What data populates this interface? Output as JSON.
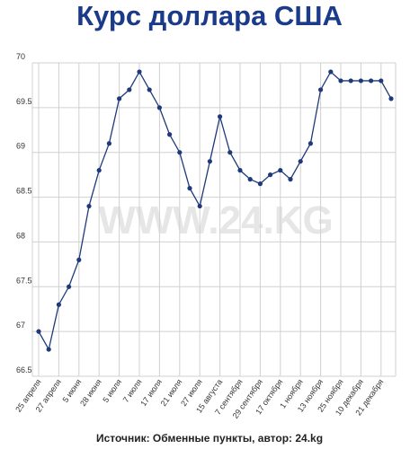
{
  "chart_data": {
    "type": "line",
    "title": "Курс доллара США",
    "watermark": "WWW.24.KG",
    "source": "Источник: Обменные пункты, автор: 24.kg",
    "categories": [
      "25 апреля",
      null,
      "27 апреля",
      null,
      "5 июня",
      null,
      "28 июня",
      null,
      "5 июля",
      null,
      "7 июля",
      null,
      "17 июля",
      null,
      "21 июля",
      null,
      "27 июля",
      null,
      "15 августа",
      null,
      "7 сентября",
      null,
      "29 сентября",
      null,
      "17 октября",
      null,
      "1 ноября",
      null,
      "13 ноября",
      null,
      "25 ноября",
      null,
      "10 декабря",
      null,
      "21 декабря",
      null
    ],
    "values": [
      67.0,
      66.8,
      67.3,
      67.5,
      67.8,
      68.4,
      68.8,
      69.1,
      69.6,
      69.7,
      69.9,
      69.7,
      69.5,
      69.2,
      69.0,
      68.6,
      68.4,
      68.9,
      69.4,
      69.0,
      68.8,
      68.7,
      68.65,
      68.75,
      68.8,
      68.7,
      68.9,
      69.1,
      69.7,
      69.9,
      69.8,
      69.8,
      69.8,
      69.8,
      69.8,
      69.6
    ],
    "color": "#1f3a7a",
    "ylim": [
      66.5,
      70
    ],
    "yticks": [
      66.5,
      67,
      67.5,
      68,
      68.5,
      69,
      69.5,
      70
    ],
    "grid": true
  }
}
